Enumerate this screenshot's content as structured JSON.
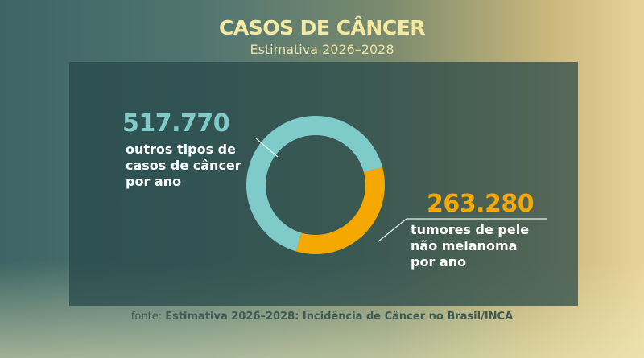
{
  "title": "CASOS DE CÂNCER",
  "subtitle": "Estimativa 2026–2028",
  "chart_data": {
    "type": "pie",
    "style": "donut",
    "title": "CASOS DE CÂNCER",
    "subtitle": "Estimativa 2026–2028",
    "slices": [
      {
        "value_label": "517.770",
        "value": 517770,
        "label_lines": [
          "outros tipos de",
          "casos de câncer",
          "por ano"
        ],
        "color": "#7ecbc9"
      },
      {
        "value_label": "263.280",
        "value": 263280,
        "label_lines": [
          "tumores de pele",
          "não melanoma",
          "por ano"
        ],
        "color": "#f5a800"
      }
    ]
  },
  "source": {
    "prefix": "fonte:",
    "text": "Estimativa 2026–2028: Incidência de Câncer no Brasil/INCA"
  }
}
